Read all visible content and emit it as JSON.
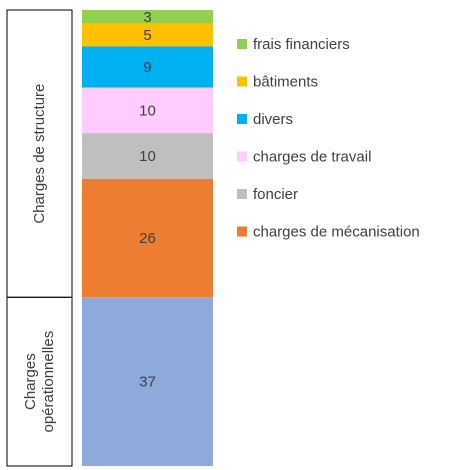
{
  "chart_data": {
    "type": "bar",
    "stacked": true,
    "series": [
      {
        "color": "#8eaadb",
        "values": [
          37
        ]
      },
      {
        "name": "charges de mécanisation",
        "color": "#ed7d31",
        "values": [
          26
        ]
      },
      {
        "name": "foncier",
        "color": "#bfbfbf",
        "values": [
          10
        ]
      },
      {
        "name": "charges de travail",
        "color": "#ffccff",
        "values": [
          10
        ]
      },
      {
        "name": "divers",
        "color": "#00b0f0",
        "values": [
          9
        ]
      },
      {
        "name": "bâtiments",
        "color": "#ffc000",
        "values": [
          5
        ]
      },
      {
        "name": "frais financiers",
        "color": "#92d050",
        "values": [
          3
        ]
      }
    ],
    "groups": [
      {
        "label": [
          "Charges de structure"
        ],
        "series": [
          1,
          2,
          3,
          4,
          5,
          6
        ]
      },
      {
        "label": [
          "Charges",
          "opérationnelles"
        ],
        "series": [
          0
        ]
      }
    ],
    "ylim": [
      0,
      100
    ]
  }
}
